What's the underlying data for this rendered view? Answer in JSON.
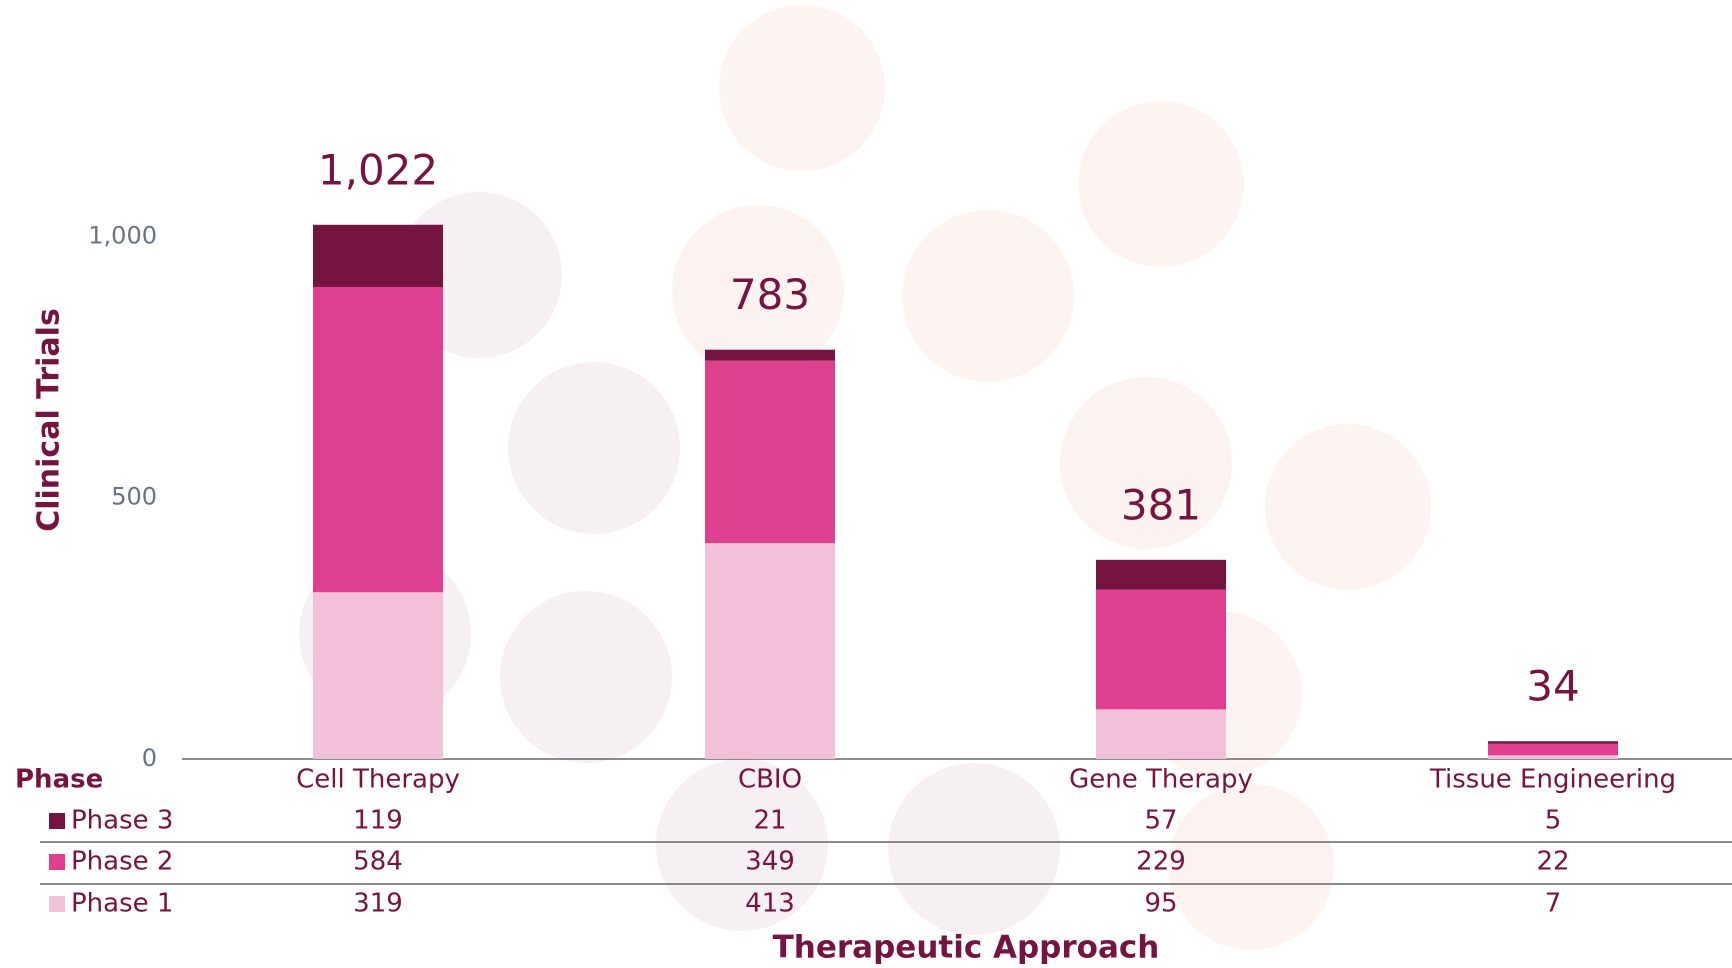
{
  "chart_data": {
    "type": "stacked_bar",
    "y_label": "Clinical Trials",
    "x_label": "Therapeutic Approach",
    "table_header": "Phase",
    "categories": [
      "Cell Therapy",
      "CBIO",
      "Gene Therapy",
      "Tissue Engineering"
    ],
    "series": [
      {
        "name": "Phase 1",
        "color": "#f3c0da",
        "values": [
          319,
          413,
          95,
          7
        ]
      },
      {
        "name": "Phase 2",
        "color": "#de3f8f",
        "values": [
          584,
          349,
          229,
          22
        ]
      },
      {
        "name": "Phase 3",
        "color": "#761441",
        "values": [
          119,
          21,
          57,
          5
        ]
      }
    ],
    "totals": [
      1022,
      783,
      381,
      34
    ],
    "total_labels": [
      "1,022",
      "783",
      "381",
      "34"
    ],
    "ylim": [
      0,
      1100
    ],
    "yticks": [
      0,
      500,
      {
        "value": 1000,
        "label": "1,000"
      }
    ]
  }
}
